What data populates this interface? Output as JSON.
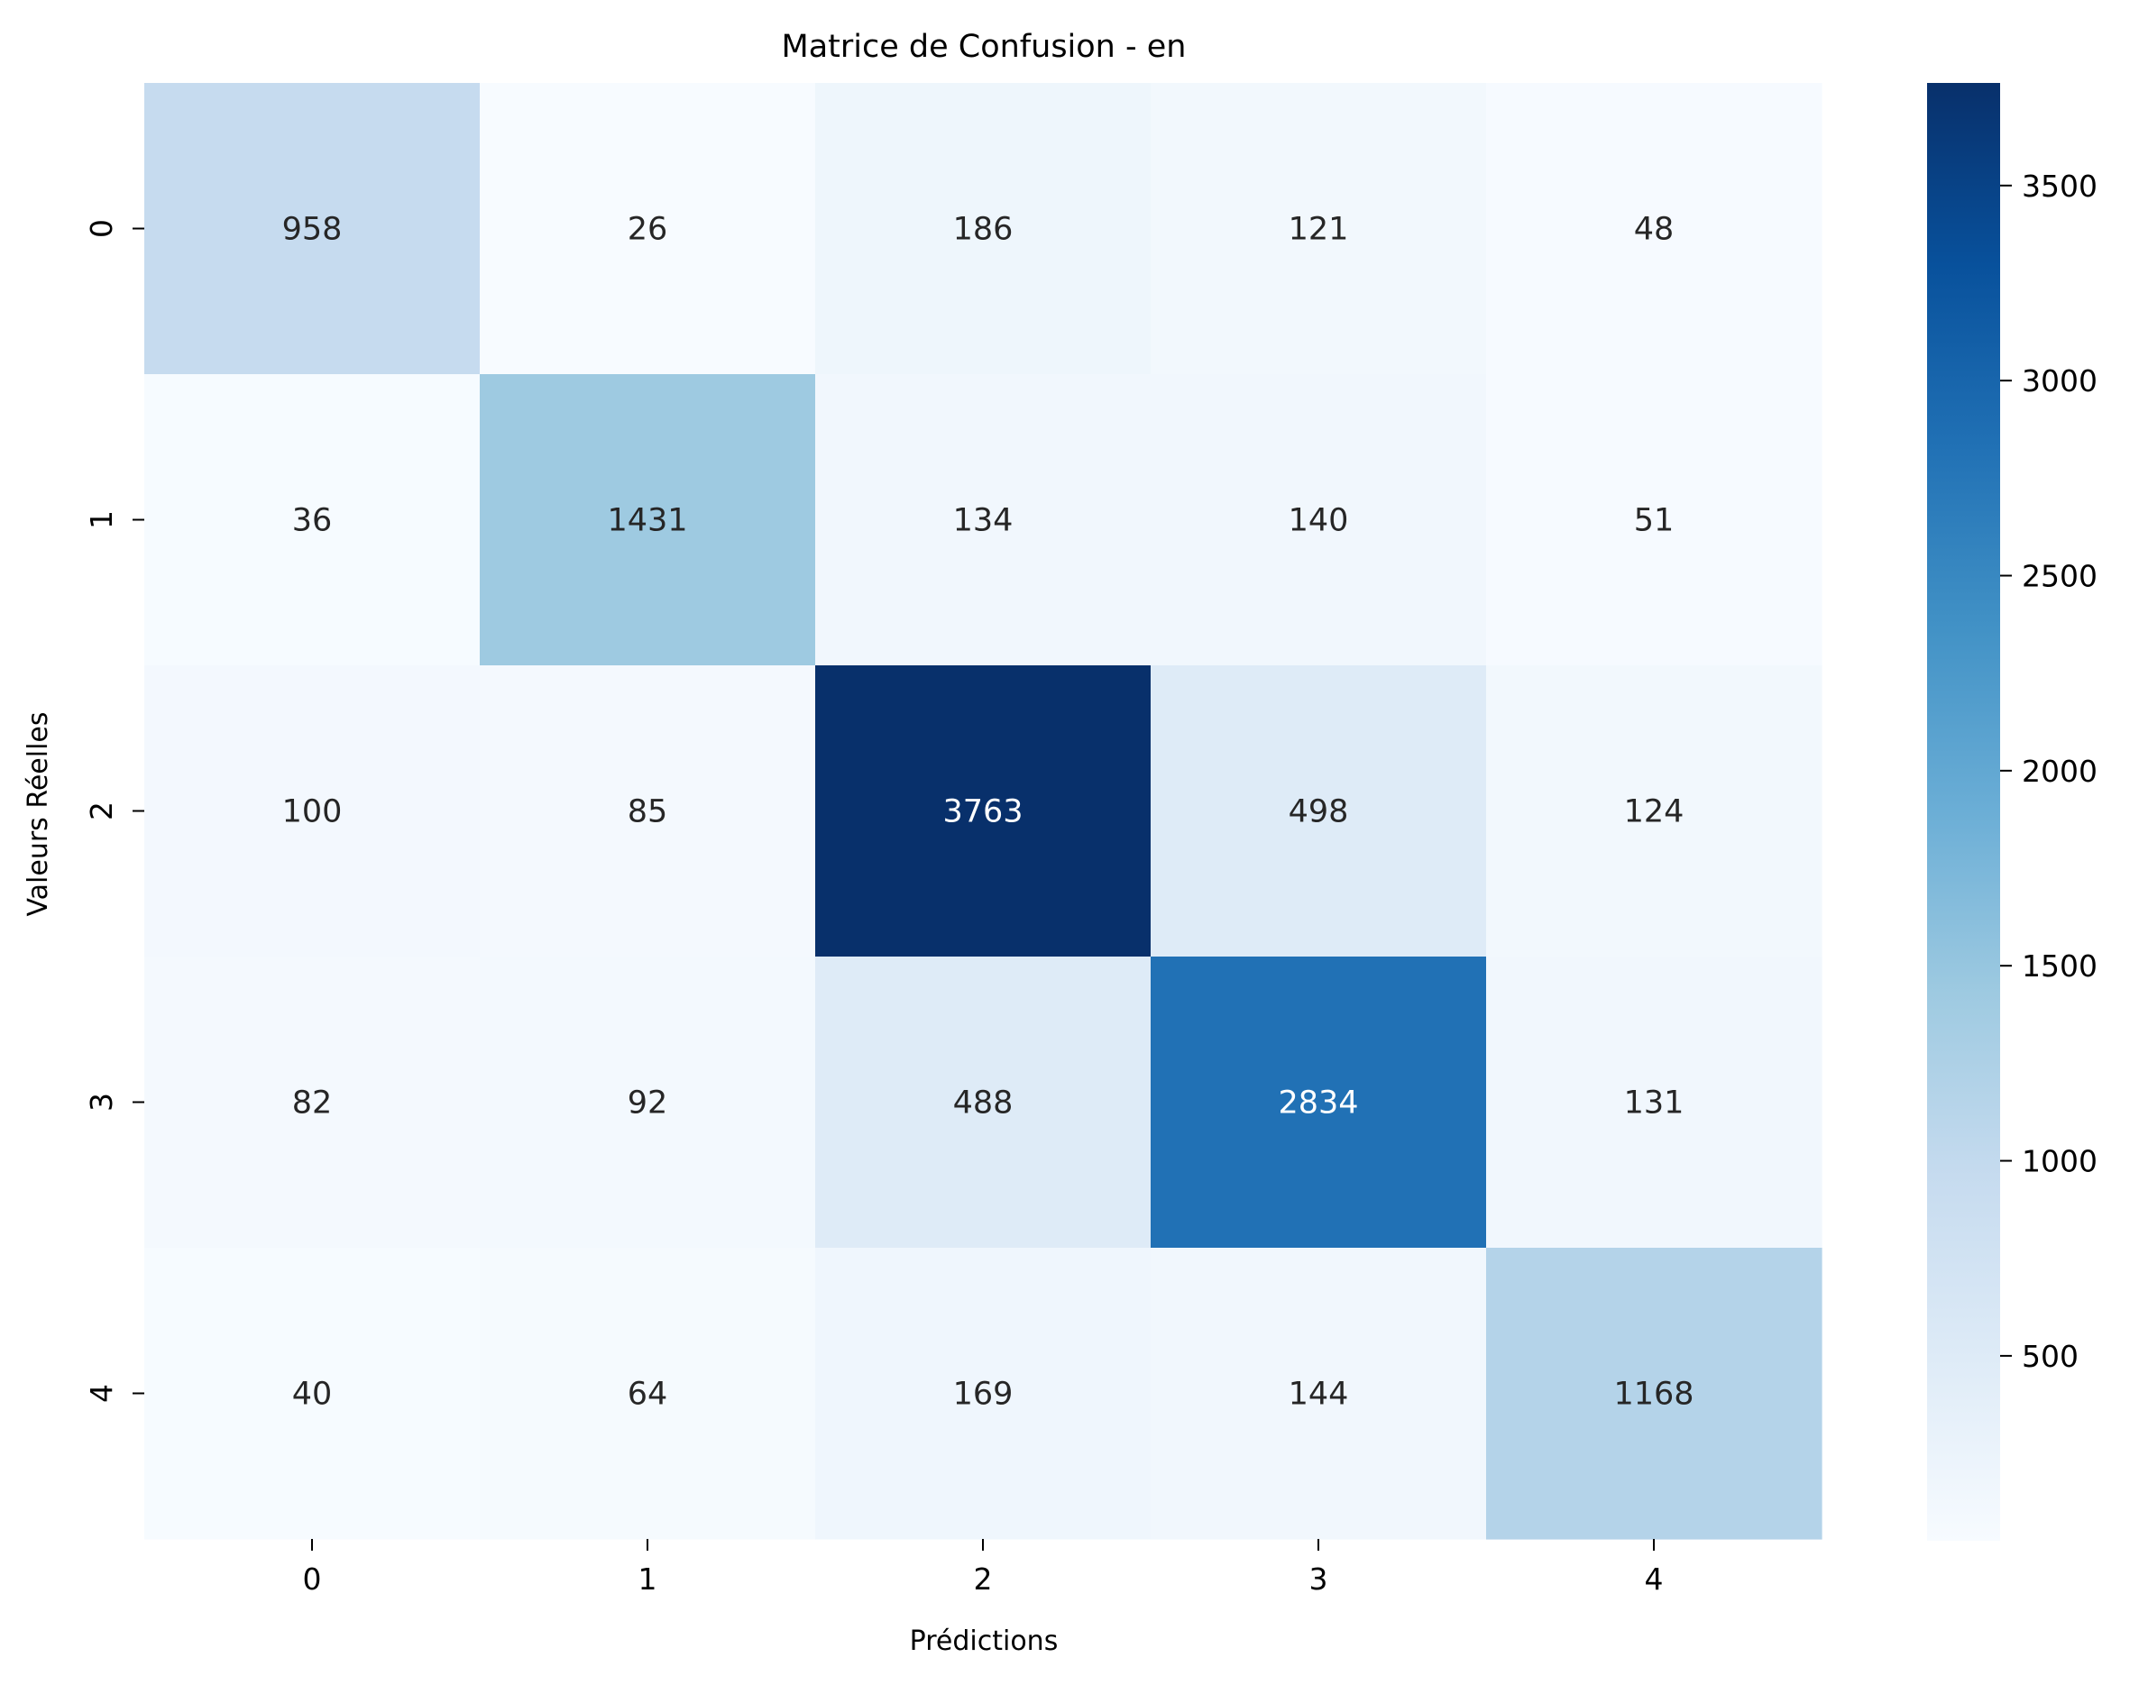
{
  "chart_data": {
    "type": "heatmap",
    "title": "Matrice de Confusion - en",
    "xlabel": "Prédictions",
    "ylabel": "Valeurs Réelles",
    "x_categories": [
      "0",
      "1",
      "2",
      "3",
      "4"
    ],
    "y_categories": [
      "0",
      "1",
      "2",
      "3",
      "4"
    ],
    "values": [
      [
        958,
        26,
        186,
        121,
        48
      ],
      [
        36,
        1431,
        134,
        140,
        51
      ],
      [
        100,
        85,
        3763,
        498,
        124
      ],
      [
        82,
        92,
        488,
        2834,
        131
      ],
      [
        40,
        64,
        169,
        144,
        1168
      ]
    ],
    "colormap": "Blues",
    "colorbar": {
      "vmin": 26,
      "vmax": 3763,
      "ticks": [
        500,
        1000,
        1500,
        2000,
        2500,
        3000,
        3500
      ],
      "tick_labels": [
        "500",
        "1000",
        "1500",
        "2000",
        "2500",
        "3000",
        "3500"
      ]
    },
    "annotation_colors": {
      "dark_text": "#262626",
      "light_text": "#ffffff"
    }
  }
}
